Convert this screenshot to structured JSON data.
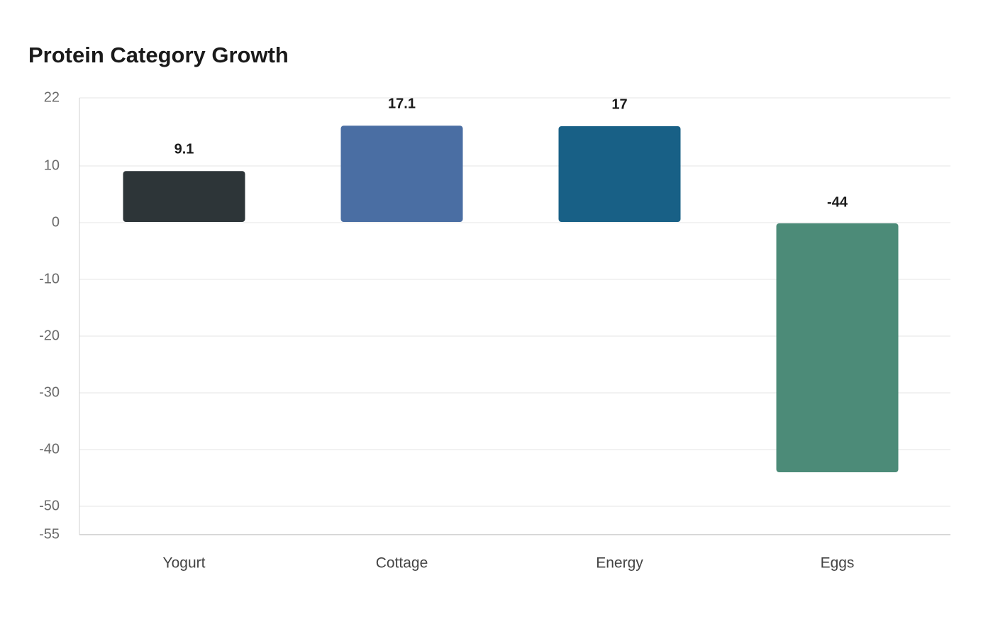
{
  "chart_data": {
    "type": "bar",
    "title": "Protein Category Growth",
    "xlabel": "",
    "ylabel": "",
    "categories": [
      "Yogurt",
      "Cottage",
      "Energy",
      "Eggs"
    ],
    "values": [
      9.1,
      17.1,
      17,
      -44
    ],
    "data_labels": [
      "9.1",
      "17.1",
      "17",
      "-44"
    ],
    "colors": [
      "#2d3538",
      "#4a6ea3",
      "#186086",
      "#4c8b78"
    ],
    "ylim": [
      -55,
      22
    ],
    "yticks": [
      22,
      10,
      0,
      -10,
      -20,
      -30,
      -40,
      -50,
      -55
    ],
    "grid": true,
    "legend": "none"
  }
}
